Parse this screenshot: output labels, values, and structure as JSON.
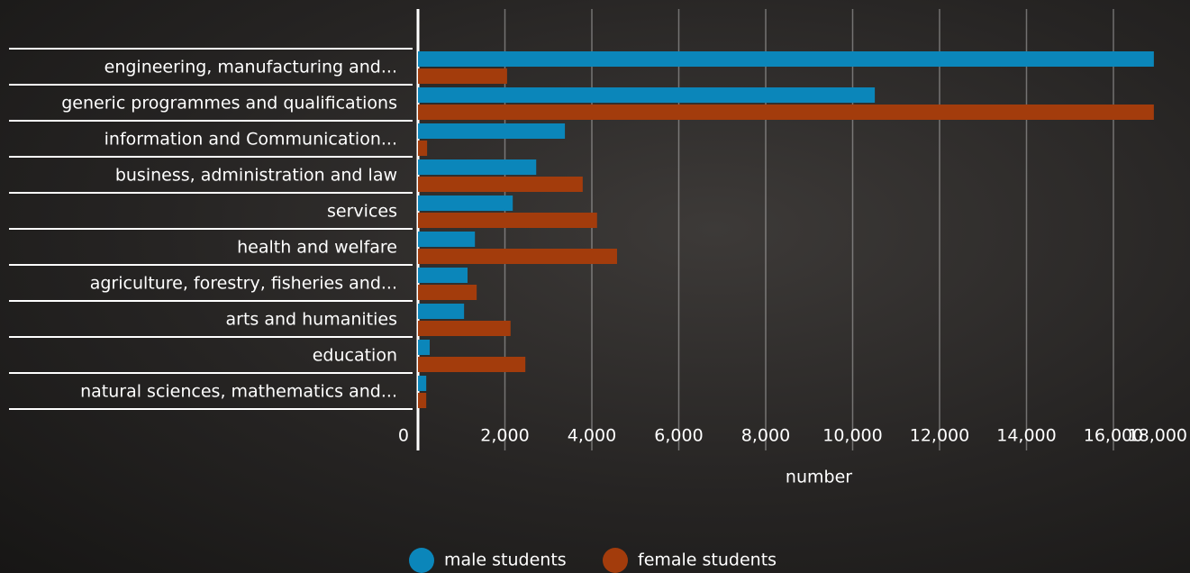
{
  "chart_data": {
    "type": "barh",
    "categories": [
      "engineering, manufacturing and...",
      "generic programmes and qualifications",
      "information and Communication...",
      "business, administration and law",
      "services",
      "health and welfare",
      "agriculture, forestry, fisheries and...",
      "arts and humanities",
      "education",
      "natural sciences, mathematics and..."
    ],
    "series": [
      {
        "name": "male students",
        "color": "#0b86ba",
        "values": [
          16930,
          10510,
          3380,
          2720,
          2180,
          1310,
          1140,
          1060,
          270,
          190
        ]
      },
      {
        "name": "female students",
        "color": "#a33c0c",
        "values": [
          2050,
          16930,
          210,
          3790,
          4120,
          4580,
          1350,
          2130,
          2470,
          190
        ]
      }
    ],
    "xlabel": "number",
    "xlim": [
      0,
      18000
    ],
    "xticks": [
      0,
      {
        "value": 2000,
        "label": "2,000"
      },
      {
        "value": 4000,
        "label": "4,000"
      },
      {
        "value": 6000,
        "label": "6,000"
      },
      {
        "value": 8000,
        "label": "8,000"
      },
      {
        "value": 10000,
        "label": "10,000"
      },
      {
        "value": 12000,
        "label": "12,000"
      },
      {
        "value": 14000,
        "label": "14,000"
      },
      {
        "value": 16000,
        "label": "16,000"
      },
      {
        "value": 18000,
        "label": "18,000"
      }
    ],
    "grid": true,
    "legend": "bottom"
  }
}
